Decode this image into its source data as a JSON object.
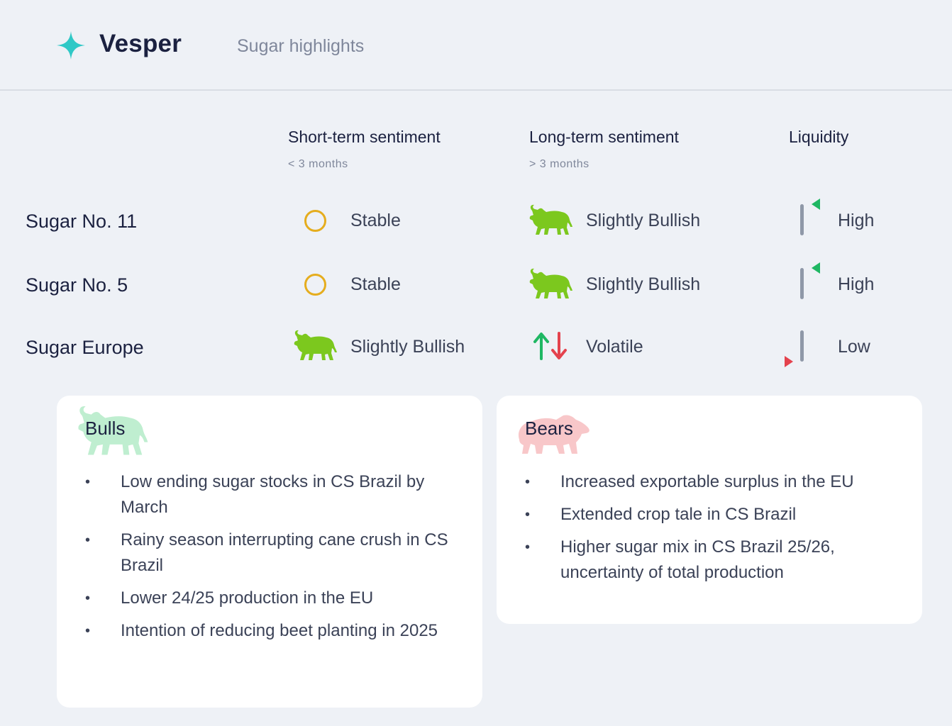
{
  "header": {
    "brand": "Vesper",
    "subtitle": "Sugar highlights"
  },
  "columns": {
    "short_term": {
      "title": "Short-term sentiment",
      "subtitle": "< 3 months"
    },
    "long_term": {
      "title": "Long-term sentiment",
      "subtitle": "> 3 months"
    },
    "liquidity": {
      "title": "Liquidity"
    }
  },
  "rows": [
    {
      "name": "Sugar No. 11",
      "short_term": {
        "label": "Stable",
        "icon": "circle-icon"
      },
      "long_term": {
        "label": "Slightly Bullish",
        "icon": "bull-icon"
      },
      "liquidity": {
        "label": "High",
        "icon": "liquidity-high-icon"
      }
    },
    {
      "name": "Sugar No. 5",
      "short_term": {
        "label": "Stable",
        "icon": "circle-icon"
      },
      "long_term": {
        "label": "Slightly Bullish",
        "icon": "bull-icon"
      },
      "liquidity": {
        "label": "High",
        "icon": "liquidity-high-icon"
      }
    },
    {
      "name": "Sugar Europe",
      "short_term": {
        "label": "Slightly Bullish",
        "icon": "bull-icon"
      },
      "long_term": {
        "label": "Volatile",
        "icon": "up-down-arrows-icon"
      },
      "liquidity": {
        "label": "Low",
        "icon": "liquidity-low-icon"
      }
    }
  ],
  "bulls": {
    "title": "Bulls",
    "items": [
      "Low ending sugar stocks in CS Brazil by March",
      "Rainy season interrupting cane crush in CS Brazil",
      "Lower 24/25 production in the EU",
      "Intention of reducing beet planting in 2025"
    ]
  },
  "bears": {
    "title": "Bears",
    "items": [
      "Increased exportable surplus in the EU",
      "Extended crop tale in CS Brazil",
      "Higher sugar mix in CS Brazil 25/26, uncertainty of total production"
    ]
  },
  "colors": {
    "bull": "#7cc81e",
    "stable": "#e5ad1e",
    "up_arrow": "#1fb763",
    "down_arrow": "#e4424d",
    "liquidity_bar": "#8f98a8",
    "bulls_watermark": "#bfeed0",
    "bears_watermark": "#f8c7c9"
  }
}
